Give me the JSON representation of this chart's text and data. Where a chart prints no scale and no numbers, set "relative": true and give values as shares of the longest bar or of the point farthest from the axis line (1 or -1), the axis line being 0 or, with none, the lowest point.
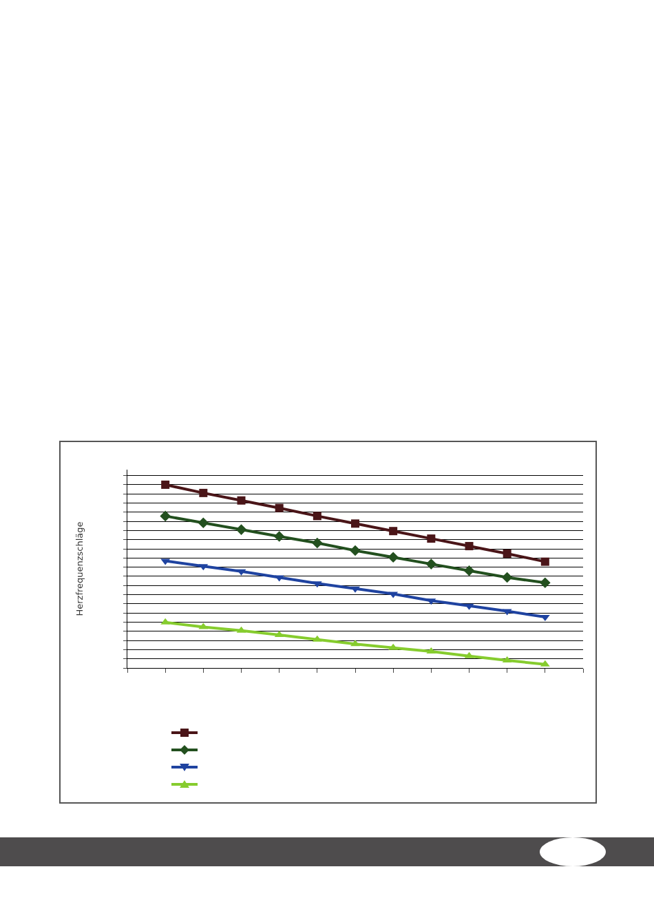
{
  "chart_data": {
    "type": "line",
    "relative": true,
    "ylabel": "Herzfrequenzschläge",
    "categories": [
      null,
      null,
      null,
      null,
      null,
      null,
      null,
      null,
      null,
      null,
      null
    ],
    "grid": "y",
    "line_style": "solid",
    "series": [
      {
        "color": "#4a1518",
        "marker": "square",
        "values": [
          1,
          0.955,
          0.914,
          0.873,
          0.829,
          0.788,
          0.747,
          0.706,
          0.665,
          0.624,
          0.58
        ]
      },
      {
        "color": "#23501f",
        "marker": "diamond",
        "values": [
          0.829,
          0.792,
          0.755,
          0.718,
          0.682,
          0.641,
          0.604,
          0.567,
          0.531,
          0.494,
          0.465
        ]
      },
      {
        "color": "#1f43a0",
        "marker": "triangle-down",
        "values": [
          0.584,
          0.555,
          0.527,
          0.494,
          0.461,
          0.433,
          0.404,
          0.367,
          0.339,
          0.31,
          0.278
        ]
      },
      {
        "color": "#86cc2e",
        "marker": "triangle",
        "values": [
          0.249,
          0.224,
          0.204,
          0.18,
          0.155,
          0.131,
          0.11,
          0.09,
          0.065,
          0.041,
          0.02
        ]
      }
    ]
  }
}
